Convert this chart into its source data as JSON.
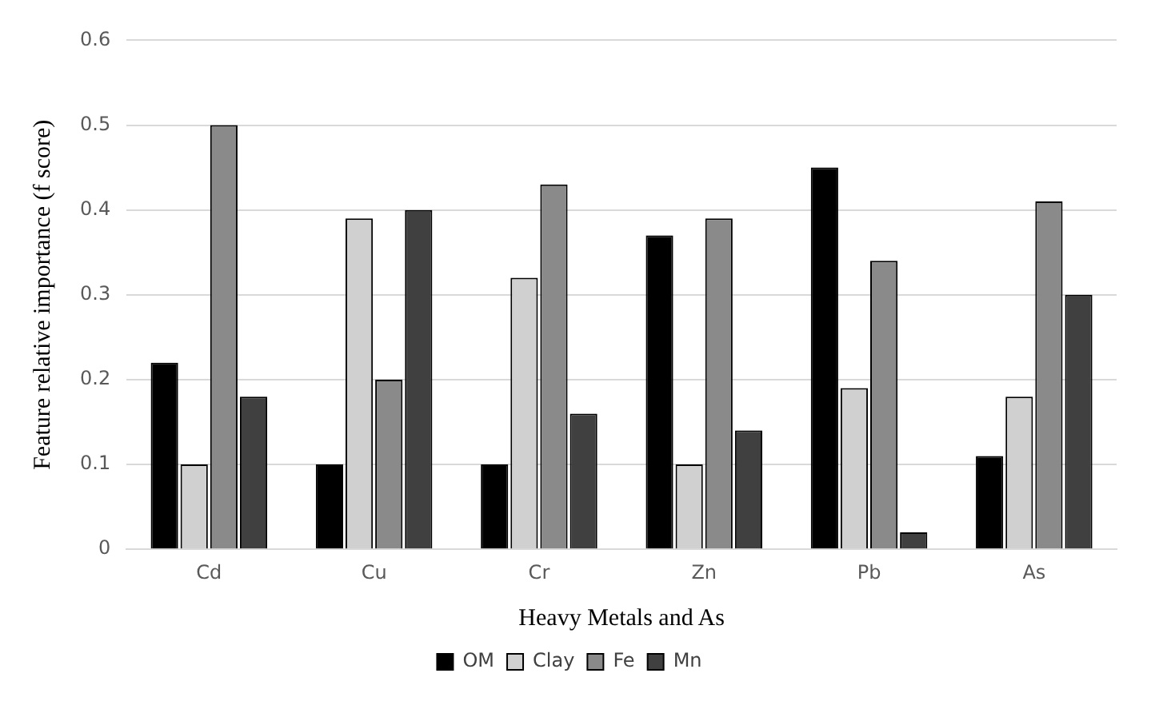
{
  "chart_data": {
    "type": "bar",
    "xlabel": "Heavy Metals and As",
    "ylabel": "Feature relative importance (f score)",
    "categories": [
      "Cd",
      "Cu",
      "Cr",
      "Zn",
      "Pb",
      "As"
    ],
    "series": [
      {
        "name": "OM",
        "color": "#000000",
        "values": [
          0.22,
          0.1,
          0.1,
          0.37,
          0.45,
          0.11
        ]
      },
      {
        "name": "Clay",
        "color": "#d0d0d0",
        "values": [
          0.1,
          0.39,
          0.32,
          0.1,
          0.19,
          0.18
        ]
      },
      {
        "name": "Fe",
        "color": "#8a8a8a",
        "values": [
          0.5,
          0.2,
          0.43,
          0.39,
          0.34,
          0.41
        ]
      },
      {
        "name": "Mn",
        "color": "#404040",
        "values": [
          0.18,
          0.4,
          0.16,
          0.14,
          0.02,
          0.3
        ]
      }
    ],
    "ylim": [
      0,
      0.6
    ],
    "yticks": [
      0,
      0.1,
      0.2,
      0.3,
      0.4,
      0.5,
      0.6
    ],
    "grid": "y",
    "legend": "bottom"
  }
}
